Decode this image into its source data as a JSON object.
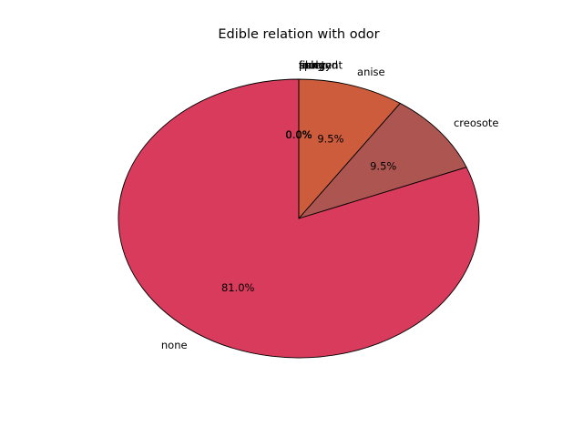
{
  "chart_data": {
    "type": "pie",
    "title": "Edible relation with odor",
    "start_angle_deg": 90,
    "direction": "clockwise",
    "edge_color": "#000000",
    "slices": [
      {
        "label": "anise",
        "value": 9.5,
        "pct_label": "9.5%",
        "color": "#cd5c3c"
      },
      {
        "label": "creosote",
        "value": 9.5,
        "pct_label": "9.5%",
        "color": "#ad5651"
      },
      {
        "label": "none",
        "value": 81.0,
        "pct_label": "81.0%",
        "color": "#d83b5b"
      },
      {
        "label": "fishy",
        "value": 0.0,
        "pct_label": "0.0%",
        "color": "#cd5c3c"
      },
      {
        "label": "foul",
        "value": 0.0,
        "pct_label": "0.0%",
        "color": "#cd5c3c"
      },
      {
        "label": "almond",
        "value": 0.0,
        "pct_label": "0.0%",
        "color": "#cd5c3c"
      },
      {
        "label": "musty",
        "value": 0.0,
        "pct_label": "0.0%",
        "color": "#cd5c3c"
      },
      {
        "label": "pungent",
        "value": 0.0,
        "pct_label": "0.0%",
        "color": "#cd5c3c"
      },
      {
        "label": "spicy",
        "value": 0.0,
        "pct_label": "0.0%",
        "color": "#cd5c3c"
      }
    ]
  }
}
